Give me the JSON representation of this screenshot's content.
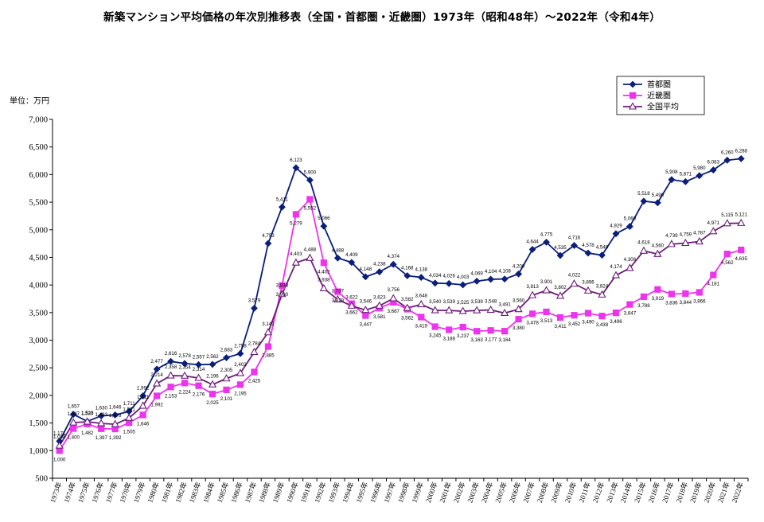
{
  "chart_data": {
    "type": "line",
    "title": "新築マンション平均価格の年次別推移表（全国・首都圏・近畿圏）1973年（昭和48年）～2022年（令和4年）",
    "unit": "単位：万円",
    "ylim": [
      500,
      7000
    ],
    "yticks": [
      "500",
      "1,000",
      "1,500",
      "2,000",
      "2,500",
      "3,000",
      "3,500",
      "4,000",
      "4,500",
      "5,000",
      "5,500",
      "6,000",
      "6,500",
      "7,000"
    ],
    "grid": false,
    "legend": "top-right",
    "categories": [
      "1973年",
      "1974年",
      "1975年",
      "1976年",
      "1977年",
      "1978年",
      "1979年",
      "1980年",
      "1981年",
      "1982年",
      "1983年",
      "1984年",
      "1985年",
      "1986年",
      "1987年",
      "1988年",
      "1989年",
      "1990年",
      "1991年",
      "1992年",
      "1993年",
      "1994年",
      "1995年",
      "1996年",
      "1997年",
      "1998年",
      "1999年",
      "2000年",
      "2001年",
      "2002年",
      "2003年",
      "2004年",
      "2005年",
      "2006年",
      "2007年",
      "2008年",
      "2009年",
      "2010年",
      "2011年",
      "2012年",
      "2013年",
      "2014年",
      "2015年",
      "2016年",
      "2017年",
      "2018年",
      "2019年",
      "2020年",
      "2021年",
      "2022年"
    ],
    "series": [
      {
        "name": "首都圏",
        "color": "#0a1e7c",
        "marker": "diamond",
        "values": [
          1171,
          1657,
          1530,
          1630,
          1646,
          1711,
          1992,
          2477,
          2616,
          2578,
          2557,
          2562,
          2683,
          2758,
          3579,
          4753,
          5411,
          6123,
          5900,
          5066,
          4488,
          4409,
          4148,
          4238,
          4374,
          4168,
          4138,
          4034,
          4026,
          4003,
          4069,
          4104,
          4108,
          4200,
          4644,
          4775,
          4535,
          4716,
          4578,
          4540,
          4929,
          5060,
          5518,
          5490,
          5908,
          5871,
          5980,
          6083,
          6260,
          6288
        ],
        "labels": [
          "1,171",
          "1,657",
          "1,530",
          "1,630",
          "1,646",
          "1,711",
          "1,992",
          "2,477",
          "2,616",
          "2,578",
          "2,557",
          "2,562",
          "2,683",
          "2,758",
          "3,579",
          "4,753",
          "5,411",
          "6,123",
          "5,900",
          "5,066",
          "4,488",
          "4,409",
          "4,148",
          "4,238",
          "4,374",
          "4,168",
          "4,138",
          "4,034",
          "4,026",
          "4,003",
          "4,069",
          "4,104",
          "4,108",
          "4,200",
          "4,644",
          "4,775",
          "4,535",
          "4,716",
          "4,578",
          "4,540",
          "4,929",
          "5,060",
          "5,518",
          "5,490",
          "5,908",
          "5,871",
          "5,980",
          "6,083",
          "6,260",
          "6,288"
        ]
      },
      {
        "name": "近畿圏",
        "color": "#ee33ee",
        "marker": "square",
        "values": [
          1000,
          1400,
          1482,
          1397,
          1392,
          1505,
          1646,
          1992,
          2153,
          2224,
          2176,
          2025,
          2101,
          2195,
          2425,
          2885,
          3990,
          5279,
          5552,
          4402,
          3879,
          3662,
          3447,
          3581,
          3687,
          3562,
          3419,
          3245,
          3188,
          3237,
          3163,
          3177,
          3164,
          3380,
          3478,
          3513,
          3411,
          3452,
          3490,
          3438,
          3496,
          3647,
          3788,
          3919,
          3836,
          3844,
          3866,
          4181,
          4562,
          4635
        ],
        "labels": [
          "1,000",
          "1,400",
          "1,482",
          "1,397",
          "1,392",
          "1,505",
          "1,646",
          "1,992",
          "2,153",
          "2,224",
          "2,176",
          "2,025",
          "2,101",
          "2,195",
          "2,425",
          "2,885",
          "3,990",
          "5,279",
          "5,552",
          "4,402",
          "3,879",
          "3,662",
          "3,447",
          "3,581",
          "3,687",
          "3,562",
          "3,419",
          "3,245",
          "3,188",
          "3,237",
          "3,163",
          "3,177",
          "3,164",
          "3,380",
          "3,478",
          "3,513",
          "3,411",
          "3,452",
          "3,490",
          "3,438",
          "3,496",
          "3,647",
          "3,788",
          "3,919",
          "3,836",
          "3,844",
          "3,866",
          "4,181",
          "4,562",
          "4,635"
        ]
      },
      {
        "name": "全国平均",
        "color": "#6b1d78",
        "marker": "triangle",
        "values": [
          1088,
          1507,
          1523,
          1493,
          1478,
          1591,
          1811,
          2214,
          2358,
          2354,
          2314,
          2196,
          2305,
          2402,
          2784,
          3141,
          3833,
          4403,
          4488,
          3938,
          3737,
          3622,
          3546,
          3623,
          3756,
          3582,
          3648,
          3540,
          3539,
          3525,
          3539,
          3548,
          3491,
          3560,
          3813,
          3901,
          3802,
          4022,
          3896,
          3824,
          4174,
          4306,
          4618,
          4560,
          4739,
          4759,
          4787,
          4971,
          5115,
          5121
        ],
        "labels": [
          "1,088",
          "1,507",
          "1,523",
          "1,493",
          "1,478",
          "1,591",
          "1,811",
          "2,214",
          "2,358",
          "2,354",
          "2,314",
          "2,196",
          "2,305",
          "2,402",
          "2,784",
          "3,141",
          "3,833",
          "4,403",
          "4,488",
          "3,938",
          "3,737",
          "3,622",
          "3,546",
          "3,623",
          "3,756",
          "3,582",
          "3,648",
          "3,540",
          "3,539",
          "3,525",
          "3,539",
          "3,548",
          "3,491",
          "3,560",
          "3,813",
          "3,901",
          "3,802",
          "4,022",
          "3,896",
          "3,824",
          "4,174",
          "4,306",
          "4,618",
          "4,560",
          "4,739",
          "4,759",
          "4,787",
          "4,971",
          "5,115",
          "5,121"
        ]
      }
    ]
  }
}
